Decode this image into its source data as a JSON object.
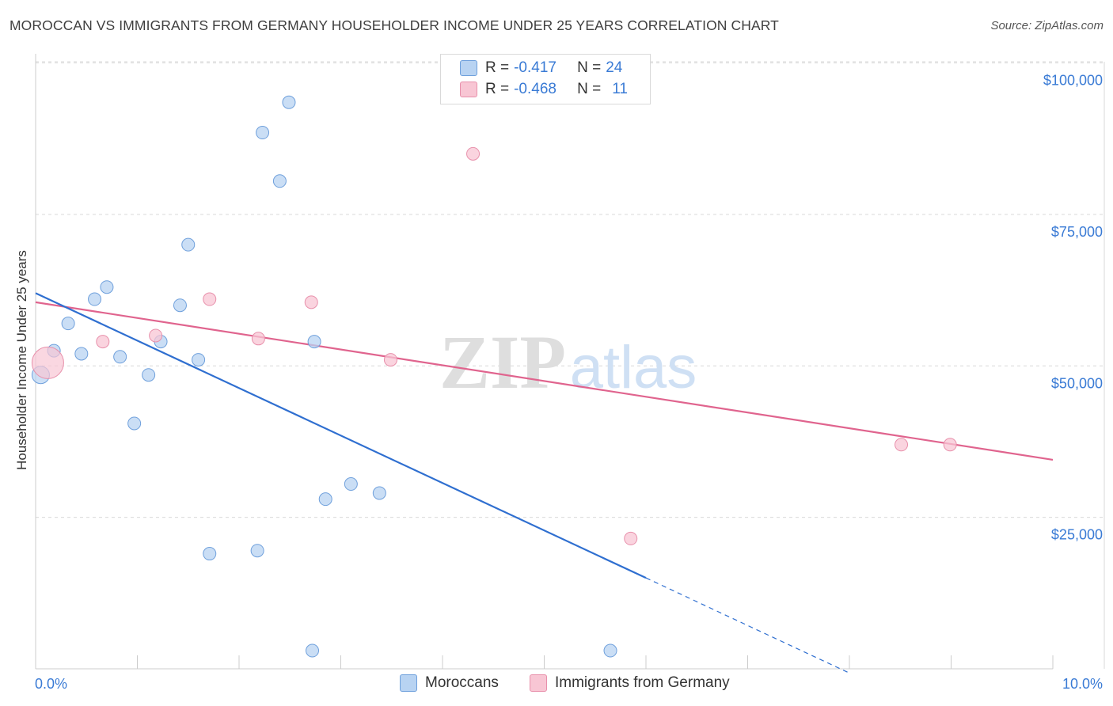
{
  "header": {
    "title": "MOROCCAN VS IMMIGRANTS FROM GERMANY HOUSEHOLDER INCOME UNDER 25 YEARS CORRELATION CHART",
    "source": "Source: ZipAtlas.com"
  },
  "legend": {
    "series1": {
      "r_label": "R = ",
      "r_value": "-0.417",
      "n_label": "N = ",
      "n_value": "24"
    },
    "series2": {
      "r_label": "R = ",
      "r_value": "-0.468",
      "n_label": "N = ",
      "n_value": "11"
    }
  },
  "colors": {
    "blue_fill": "#b8d3f2",
    "blue_stroke": "#6fa0dc",
    "blue_line": "#2f6fd0",
    "pink_fill": "#f8c6d4",
    "pink_stroke": "#e890ab",
    "pink_line": "#e0648e",
    "axis_text": "#3a7bd5",
    "grid": "#d9d9d9"
  },
  "chart_data": {
    "type": "scatter",
    "title": "MOROCCAN VS IMMIGRANTS FROM GERMANY HOUSEHOLDER INCOME UNDER 25 YEARS CORRELATION CHART",
    "xlabel": "",
    "ylabel": "Householder Income Under 25 years",
    "xlim": [
      0,
      10
    ],
    "ylim": [
      0,
      105000
    ],
    "x_tick_labels": [
      "0.0%",
      "10.0%"
    ],
    "y_ticks": [
      25000,
      50000,
      75000,
      100000
    ],
    "y_tick_labels": [
      "$25,000",
      "$50,000",
      "$75,000",
      "$100,000"
    ],
    "watermark": {
      "zip": "ZIP",
      "atlas": "atlas"
    },
    "series": [
      {
        "name": "Moroccans",
        "points": [
          {
            "x": 0.05,
            "y": 48500,
            "big": true
          },
          {
            "x": 0.18,
            "y": 52500
          },
          {
            "x": 0.32,
            "y": 57000
          },
          {
            "x": 0.45,
            "y": 52000
          },
          {
            "x": 0.58,
            "y": 61000
          },
          {
            "x": 0.7,
            "y": 63000
          },
          {
            "x": 0.83,
            "y": 51500
          },
          {
            "x": 0.97,
            "y": 40500
          },
          {
            "x": 1.11,
            "y": 48500
          },
          {
            "x": 1.23,
            "y": 54000
          },
          {
            "x": 1.42,
            "y": 60000
          },
          {
            "x": 1.5,
            "y": 70000
          },
          {
            "x": 1.6,
            "y": 51000
          },
          {
            "x": 1.71,
            "y": 19000
          },
          {
            "x": 2.18,
            "y": 19500
          },
          {
            "x": 2.23,
            "y": 88500
          },
          {
            "x": 2.4,
            "y": 80500
          },
          {
            "x": 2.49,
            "y": 93500
          },
          {
            "x": 2.72,
            "y": 3000
          },
          {
            "x": 2.74,
            "y": 54000
          },
          {
            "x": 2.85,
            "y": 28000
          },
          {
            "x": 3.1,
            "y": 30500
          },
          {
            "x": 3.38,
            "y": 29000
          },
          {
            "x": 5.65,
            "y": 3000
          }
        ],
        "trend": {
          "x0": 0.0,
          "y0": 62000,
          "x1": 6.0,
          "y1": 15000,
          "dash_to_x": 8.0,
          "dash_to_y": -700
        }
      },
      {
        "name": "Immigrants from Germany",
        "points": [
          {
            "x": 0.12,
            "y": 50500,
            "big": true
          },
          {
            "x": 0.66,
            "y": 54000
          },
          {
            "x": 1.18,
            "y": 55000
          },
          {
            "x": 1.71,
            "y": 61000
          },
          {
            "x": 2.19,
            "y": 54500
          },
          {
            "x": 2.71,
            "y": 60500
          },
          {
            "x": 3.49,
            "y": 51000
          },
          {
            "x": 4.3,
            "y": 85000
          },
          {
            "x": 5.85,
            "y": 21500
          },
          {
            "x": 8.51,
            "y": 37000
          },
          {
            "x": 8.99,
            "y": 37000
          }
        ],
        "trend": {
          "x0": 0.0,
          "y0": 60500,
          "x1": 10.0,
          "y1": 34500
        }
      }
    ],
    "legend_labels": [
      "Moroccans",
      "Immigrants from Germany"
    ]
  }
}
